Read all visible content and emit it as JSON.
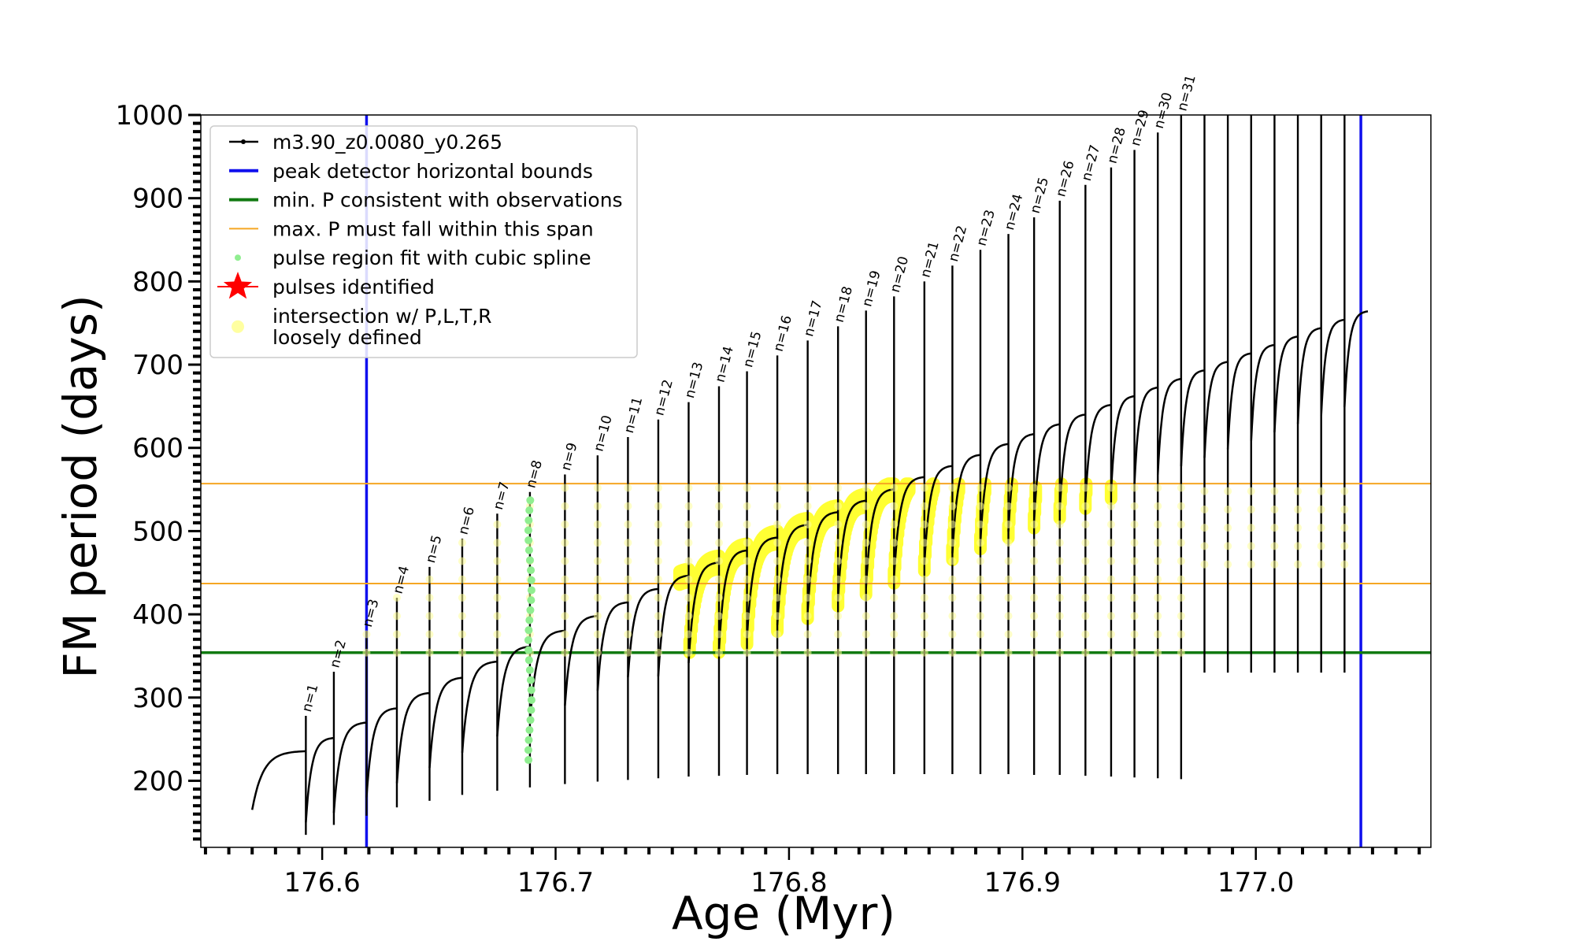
{
  "chart_data": {
    "type": "line",
    "xlabel": "Age (Myr)",
    "ylabel": "FM period (days)",
    "xlim": [
      176.548,
      177.075
    ],
    "ylim": [
      120,
      1000
    ],
    "x_ticks": [
      176.6,
      176.7,
      176.8,
      176.9,
      177.0
    ],
    "x_tick_labels": [
      "176.6",
      "176.7",
      "176.8",
      "176.9",
      "177.0"
    ],
    "y_ticks": [
      200,
      300,
      400,
      500,
      600,
      700,
      800,
      900,
      1000
    ],
    "y_tick_labels": [
      "200",
      "300",
      "400",
      "500",
      "600",
      "700",
      "800",
      "900",
      "1000"
    ],
    "grid": false,
    "legend_position": "top-left",
    "legend": [
      {
        "label": "m3.90_z0.0080_y0.265",
        "style": "line-dot",
        "color": "#000000"
      },
      {
        "label": "peak detector horizontal bounds",
        "style": "line",
        "color": "#1010ee"
      },
      {
        "label": "min. P consistent with observations",
        "style": "line",
        "color": "#117a11"
      },
      {
        "label": "max. P must fall within this span",
        "style": "line",
        "color": "#f5a623"
      },
      {
        "label": "pulse region fit with cubic spline",
        "style": "dot",
        "color": "#90ee90"
      },
      {
        "label": "pulses identified",
        "style": "star",
        "color": "#ff0000"
      },
      {
        "label": "intersection w/ P,L,T,R\nloosely defined",
        "style": "dot",
        "color": "#ffffa0"
      }
    ],
    "reference_lines": {
      "vertical_blue": [
        176.619,
        177.045
      ],
      "horizontal_green": 354,
      "horizontal_orange": [
        437,
        557
      ]
    },
    "series": [
      {
        "name": "m3.90_z0.0080_y0.265",
        "color": "#000000",
        "pulses": [
          {
            "n": 1,
            "x": 176.593,
            "peak": 278,
            "dip": 135
          },
          {
            "n": 2,
            "x": 176.605,
            "peak": 331,
            "dip": 147
          },
          {
            "n": 3,
            "x": 176.619,
            "peak": 380,
            "dip": 158
          },
          {
            "n": 4,
            "x": 176.632,
            "peak": 420,
            "dip": 168
          },
          {
            "n": 5,
            "x": 176.646,
            "peak": 457,
            "dip": 176
          },
          {
            "n": 6,
            "x": 176.66,
            "peak": 491,
            "dip": 183
          },
          {
            "n": 7,
            "x": 176.675,
            "peak": 521,
            "dip": 188
          },
          {
            "n": 8,
            "x": 176.689,
            "peak": 547,
            "dip": 192
          },
          {
            "n": 9,
            "x": 176.704,
            "peak": 568,
            "dip": 196
          },
          {
            "n": 10,
            "x": 176.718,
            "peak": 591,
            "dip": 199
          },
          {
            "n": 11,
            "x": 176.731,
            "peak": 613,
            "dip": 201
          },
          {
            "n": 12,
            "x": 176.744,
            "peak": 634,
            "dip": 203
          },
          {
            "n": 13,
            "x": 176.757,
            "peak": 655,
            "dip": 205
          },
          {
            "n": 14,
            "x": 176.77,
            "peak": 674,
            "dip": 206
          },
          {
            "n": 15,
            "x": 176.782,
            "peak": 692,
            "dip": 207
          },
          {
            "n": 16,
            "x": 176.795,
            "peak": 711,
            "dip": 208
          },
          {
            "n": 17,
            "x": 176.808,
            "peak": 729,
            "dip": 208
          },
          {
            "n": 18,
            "x": 176.821,
            "peak": 746,
            "dip": 208
          },
          {
            "n": 19,
            "x": 176.833,
            "peak": 765,
            "dip": 208
          },
          {
            "n": 20,
            "x": 176.845,
            "peak": 782,
            "dip": 208
          },
          {
            "n": 21,
            "x": 176.858,
            "peak": 800,
            "dip": 208
          },
          {
            "n": 22,
            "x": 176.87,
            "peak": 819,
            "dip": 208
          },
          {
            "n": 23,
            "x": 176.882,
            "peak": 838,
            "dip": 208
          },
          {
            "n": 24,
            "x": 176.894,
            "peak": 857,
            "dip": 208
          },
          {
            "n": 25,
            "x": 176.905,
            "peak": 877,
            "dip": 207
          },
          {
            "n": 26,
            "x": 176.916,
            "peak": 897,
            "dip": 207
          },
          {
            "n": 27,
            "x": 176.927,
            "peak": 916,
            "dip": 206
          },
          {
            "n": 28,
            "x": 176.938,
            "peak": 937,
            "dip": 205
          },
          {
            "n": 29,
            "x": 176.948,
            "peak": 958,
            "dip": 204
          },
          {
            "n": 30,
            "x": 176.958,
            "peak": 979,
            "dip": 203
          },
          {
            "n": 31,
            "x": 176.968,
            "peak": 1000,
            "dip": 202
          }
        ]
      }
    ]
  }
}
